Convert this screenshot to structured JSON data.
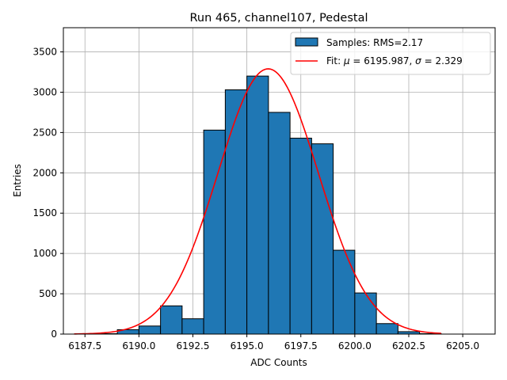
{
  "chart_data": {
    "type": "bar",
    "title": "Run 465, channel107, Pedestal",
    "xlabel": "ADC Counts",
    "ylabel": "Entries",
    "xlim": [
      6186.5,
      6206.5
    ],
    "ylim": [
      0,
      3800
    ],
    "xticks": [
      6187.5,
      6190.0,
      6192.5,
      6195.0,
      6197.5,
      6200.0,
      6202.5,
      6205.0
    ],
    "xtick_labels": [
      "6187.5",
      "6190.0",
      "6192.5",
      "6195.0",
      "6197.5",
      "6200.0",
      "6202.5",
      "6205.0"
    ],
    "yticks": [
      0,
      500,
      1000,
      1500,
      2000,
      2500,
      3000,
      3500
    ],
    "ytick_labels": [
      "0",
      "500",
      "1000",
      "1500",
      "2000",
      "2500",
      "3000",
      "3500"
    ],
    "grid": true,
    "legend_position": "top-right",
    "bins": {
      "edges": [
        6188,
        6189,
        6190,
        6191,
        6192,
        6193,
        6194,
        6195,
        6196,
        6197,
        6198,
        6199,
        6200,
        6201,
        6202,
        6203,
        6204
      ],
      "counts": [
        5,
        55,
        100,
        350,
        190,
        2530,
        3030,
        3200,
        2750,
        2430,
        2360,
        1040,
        510,
        130,
        30,
        5
      ]
    },
    "series": [
      {
        "name": "Samples: RMS=2.17",
        "kind": "histogram",
        "color": "#1f77b4",
        "edgecolor": "#000000"
      },
      {
        "name": "Fit: μ = 6195.987, σ = 2.329",
        "kind": "line",
        "color": "#ff0000",
        "mu": 6195.987,
        "sigma": 2.329,
        "amplitude": 3290,
        "x_range": [
          6187,
          6204
        ]
      }
    ],
    "legend": {
      "samples_label": "Samples: RMS=2.17",
      "fit_label_prefix": "Fit: ",
      "fit_mu_symbol": "μ",
      "fit_mu_value": " = 6195.987, ",
      "fit_sigma_symbol": "σ",
      "fit_sigma_value": " = 2.329"
    }
  }
}
